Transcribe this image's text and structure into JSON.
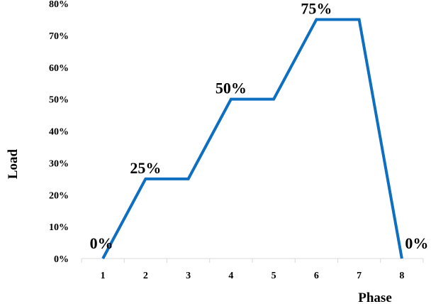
{
  "chart_data": {
    "type": "line",
    "xlabel": "Phase",
    "ylabel": "Load",
    "categories": [
      "1",
      "2",
      "3",
      "4",
      "5",
      "6",
      "7",
      "8"
    ],
    "series": [
      {
        "values": [
          0,
          25,
          25,
          50,
          50,
          75,
          75,
          0
        ]
      }
    ],
    "data_labels": [
      {
        "index": 0,
        "text": "0%"
      },
      {
        "index": 1,
        "text": "25%"
      },
      {
        "index": 3,
        "text": "50%"
      },
      {
        "index": 5,
        "text": "75%"
      },
      {
        "index": 7,
        "text": "0%"
      }
    ],
    "ylim": [
      0,
      80
    ],
    "y_ticks": [
      "0%",
      "10%",
      "20%",
      "30%",
      "40%",
      "50%",
      "60%",
      "70%",
      "80%"
    ],
    "y_tick_values": [
      0,
      10,
      20,
      30,
      40,
      50,
      60,
      70,
      80
    ],
    "grid": false,
    "colors": {
      "line": "#0E6EBF",
      "axis": "#D9D9D9"
    }
  }
}
